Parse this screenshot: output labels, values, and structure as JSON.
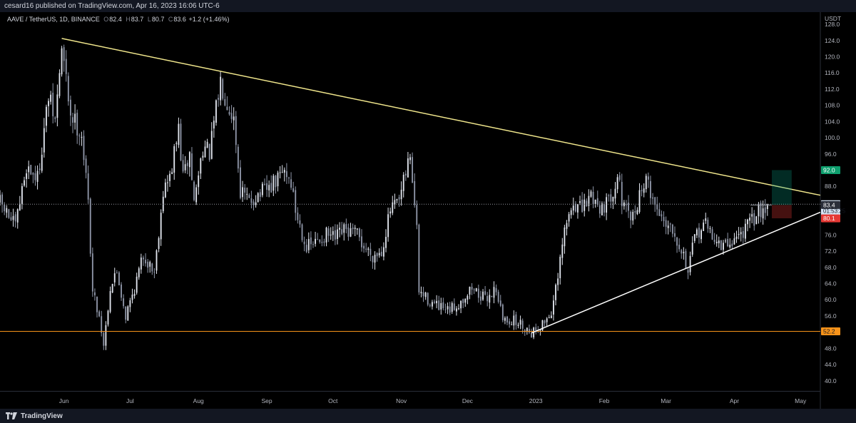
{
  "header": {
    "publisher": "cesard16 published on TradingView.com, Apr 16, 2023 16:06 UTC-6"
  },
  "legend": {
    "symbol": "AAVE / TetherUS, 1D, BINANCE",
    "open_label": "O",
    "open": "82.4",
    "high_label": "H",
    "high": "83.7",
    "low_label": "L",
    "low": "80.7",
    "close_label": "C",
    "close": "83.6",
    "change": "+1.2 (+1.46%)"
  },
  "footer": {
    "brand": "TradingView",
    "logo_icon": "tradingview-logo-icon"
  },
  "colors": {
    "background": "#000000",
    "candle_up": "#e1e5ee",
    "candle_down": "#8f96a8",
    "trend_upper": "#f0e68c",
    "trend_lower": "#ffffff",
    "support": "#f7931a",
    "target_green": "#0e9f6e",
    "stop_red": "#e53935",
    "price_badge": "#d6e4f5"
  },
  "chart_data": {
    "type": "candlestick",
    "symbol": "AAVE / TetherUS",
    "interval": "1D",
    "exchange": "BINANCE",
    "currency_label": "USDT",
    "y_axis": {
      "ticks": [
        "128.0",
        "124.0",
        "120.0",
        "116.0",
        "112.0",
        "108.0",
        "104.0",
        "100.0",
        "96.0",
        "88.0",
        "76.0",
        "72.0",
        "68.0",
        "64.0",
        "60.0",
        "56.0",
        "48.0",
        "44.0",
        "40.0"
      ],
      "tick_values": [
        128,
        124,
        120,
        116,
        112,
        108,
        104,
        100,
        96,
        88,
        76,
        72,
        68,
        64,
        60,
        56,
        48,
        44,
        40
      ],
      "range": [
        37.5,
        131
      ]
    },
    "x_axis": {
      "ticks": [
        "Jun",
        "Jul",
        "Aug",
        "Sep",
        "Oct",
        "Nov",
        "Dec",
        "2023",
        "Feb",
        "Mar",
        "Apr",
        "May"
      ],
      "tick_dates": [
        "2022-06-01",
        "2022-07-01",
        "2022-08-01",
        "2022-09-01",
        "2022-10-01",
        "2022-11-01",
        "2022-12-01",
        "2023-01-01",
        "2023-02-01",
        "2023-03-01",
        "2023-04-01",
        "2023-05-01"
      ],
      "range": [
        "2022-05-03",
        "2023-05-10"
      ]
    },
    "price_labels": [
      {
        "id": "target",
        "value": "92.0",
        "color": "#0e9f6e"
      },
      {
        "id": "current",
        "value": "83.6",
        "sub": "01:53:25",
        "color": "#d6e4f5"
      },
      {
        "id": "entry",
        "value": "83.4",
        "color": "#2a2e39"
      },
      {
        "id": "stop",
        "value": "80.1",
        "color": "#e53935"
      },
      {
        "id": "support",
        "value": "52.2",
        "color": "#f7931a"
      }
    ],
    "horizontal_lines": [
      {
        "name": "support",
        "value": 52.2,
        "color": "#f7931a"
      },
      {
        "name": "last-price",
        "value": 83.6,
        "color": "#9598a1",
        "style": "dotted"
      }
    ],
    "trendlines": [
      {
        "name": "upper-resistance",
        "from": [
          "2022-05-31",
          124.5
        ],
        "to": [
          "2023-05-10",
          85.8
        ],
        "color": "#f0e68c"
      },
      {
        "name": "lower-support",
        "from": [
          "2022-12-30",
          51.8
        ],
        "to": [
          "2023-05-10",
          81.6
        ],
        "color": "#ffffff"
      }
    ],
    "position_tool": {
      "entry_date": "2023-04-18",
      "end_date": "2023-04-27",
      "entry": 83.4,
      "target": 92.0,
      "stop": 80.1
    },
    "price_path": [
      [
        "2022-05-03",
        84
      ],
      [
        "2022-05-10",
        78
      ],
      [
        "2022-05-15",
        93
      ],
      [
        "2022-05-20",
        90
      ],
      [
        "2022-05-25",
        110
      ],
      [
        "2022-05-28",
        104
      ],
      [
        "2022-05-31",
        122
      ],
      [
        "2022-06-04",
        106
      ],
      [
        "2022-06-09",
        101
      ],
      [
        "2022-06-12",
        84
      ],
      [
        "2022-06-14",
        62
      ],
      [
        "2022-06-17",
        56
      ],
      [
        "2022-06-19",
        49
      ],
      [
        "2022-06-22",
        63
      ],
      [
        "2022-06-25",
        67
      ],
      [
        "2022-06-29",
        56
      ],
      [
        "2022-07-03",
        63
      ],
      [
        "2022-07-07",
        71
      ],
      [
        "2022-07-12",
        67
      ],
      [
        "2022-07-16",
        87
      ],
      [
        "2022-07-19",
        90
      ],
      [
        "2022-07-23",
        102
      ],
      [
        "2022-07-25",
        90
      ],
      [
        "2022-07-28",
        96
      ],
      [
        "2022-07-30",
        84
      ],
      [
        "2022-08-03",
        98
      ],
      [
        "2022-08-06",
        96
      ],
      [
        "2022-08-11",
        114
      ],
      [
        "2022-08-14",
        109
      ],
      [
        "2022-08-17",
        105
      ],
      [
        "2022-08-20",
        87
      ],
      [
        "2022-08-24",
        84
      ],
      [
        "2022-08-28",
        86
      ],
      [
        "2022-09-01",
        87
      ],
      [
        "2022-09-05",
        89
      ],
      [
        "2022-09-09",
        92
      ],
      [
        "2022-09-12",
        89
      ],
      [
        "2022-09-14",
        82
      ],
      [
        "2022-09-19",
        73
      ],
      [
        "2022-09-23",
        74
      ],
      [
        "2022-09-28",
        76
      ],
      [
        "2022-10-02",
        75
      ],
      [
        "2022-10-06",
        77
      ],
      [
        "2022-10-12",
        76
      ],
      [
        "2022-10-15",
        73
      ],
      [
        "2022-10-19",
        71
      ],
      [
        "2022-10-23",
        72
      ],
      [
        "2022-10-27",
        82
      ],
      [
        "2022-10-31",
        84
      ],
      [
        "2022-11-03",
        91
      ],
      [
        "2022-11-05",
        96
      ],
      [
        "2022-11-08",
        77
      ],
      [
        "2022-11-09",
        62
      ],
      [
        "2022-11-13",
        60
      ],
      [
        "2022-11-18",
        58
      ],
      [
        "2022-11-22",
        57
      ],
      [
        "2022-11-27",
        59
      ],
      [
        "2022-12-03",
        63
      ],
      [
        "2022-12-09",
        60
      ],
      [
        "2022-12-14",
        63
      ],
      [
        "2022-12-17",
        55
      ],
      [
        "2022-12-21",
        55
      ],
      [
        "2022-12-25",
        54
      ],
      [
        "2022-12-30",
        52
      ],
      [
        "2023-01-04",
        54
      ],
      [
        "2023-01-08",
        57
      ],
      [
        "2023-01-11",
        65
      ],
      [
        "2023-01-14",
        77
      ],
      [
        "2023-01-18",
        84
      ],
      [
        "2023-01-22",
        82
      ],
      [
        "2023-01-26",
        86
      ],
      [
        "2023-01-30",
        83
      ],
      [
        "2023-02-03",
        84
      ],
      [
        "2023-02-07",
        91
      ],
      [
        "2023-02-10",
        82
      ],
      [
        "2023-02-14",
        80
      ],
      [
        "2023-02-18",
        88
      ],
      [
        "2023-02-21",
        89
      ],
      [
        "2023-02-24",
        83
      ],
      [
        "2023-02-28",
        80
      ],
      [
        "2023-03-04",
        78
      ],
      [
        "2023-03-09",
        71
      ],
      [
        "2023-03-11",
        67
      ],
      [
        "2023-03-14",
        75
      ],
      [
        "2023-03-18",
        79
      ],
      [
        "2023-03-22",
        76
      ],
      [
        "2023-03-26",
        73
      ],
      [
        "2023-03-30",
        74
      ],
      [
        "2023-04-03",
        76
      ],
      [
        "2023-04-07",
        78
      ],
      [
        "2023-04-11",
        81
      ],
      [
        "2023-04-14",
        83
      ],
      [
        "2023-04-16",
        83.6
      ]
    ]
  }
}
